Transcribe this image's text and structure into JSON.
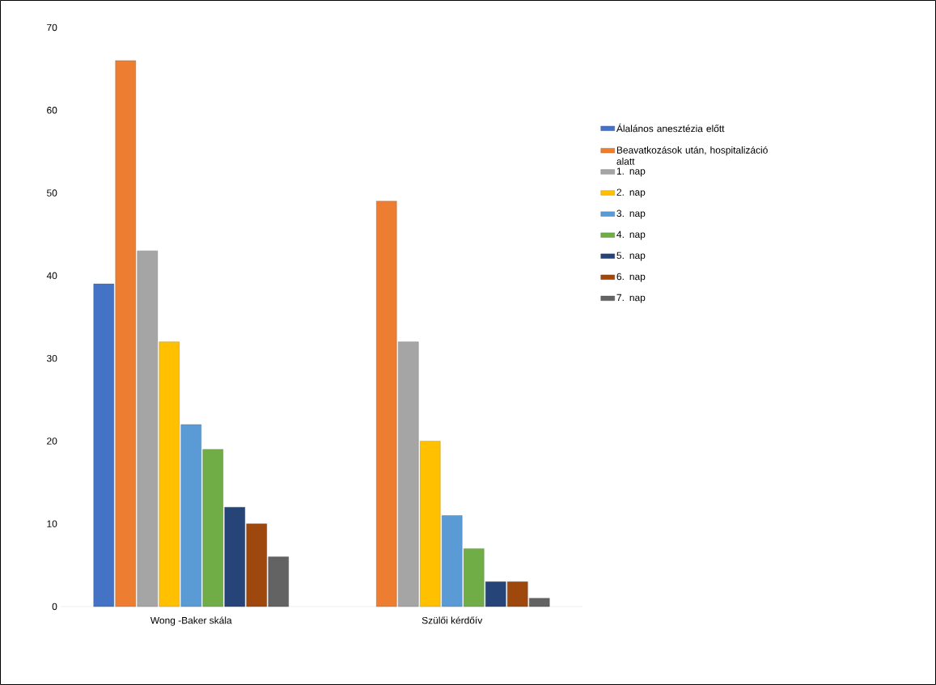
{
  "chart_data": {
    "type": "bar",
    "categories": [
      "Wong -Baker skála",
      "Szülői kérdőív"
    ],
    "series": [
      {
        "name": "Álalános anesztézia előtt",
        "color": "#4472c4",
        "values": [
          39,
          null
        ]
      },
      {
        "name": "Beavatkozások után, hospitalizáció alatt",
        "color": "#ed7d31",
        "values": [
          66,
          49
        ]
      },
      {
        "name": "1. nap",
        "color": "#a5a5a5",
        "values": [
          43,
          32
        ]
      },
      {
        "name": "2. nap",
        "color": "#ffc000",
        "values": [
          32,
          20
        ]
      },
      {
        "name": "3. nap",
        "color": "#5b9bd5",
        "values": [
          22,
          11
        ]
      },
      {
        "name": "4. nap",
        "color": "#70ad47",
        "values": [
          19,
          7
        ]
      },
      {
        "name": "5. nap",
        "color": "#264478",
        "values": [
          12,
          3
        ]
      },
      {
        "name": "6. nap",
        "color": "#9e480e",
        "values": [
          10,
          3
        ]
      },
      {
        "name": "7. nap",
        "color": "#636363",
        "values": [
          6,
          1
        ]
      }
    ],
    "ylim": [
      0,
      70
    ],
    "yticks": [
      0,
      10,
      20,
      30,
      40,
      50,
      60,
      70
    ],
    "legend": "right"
  }
}
